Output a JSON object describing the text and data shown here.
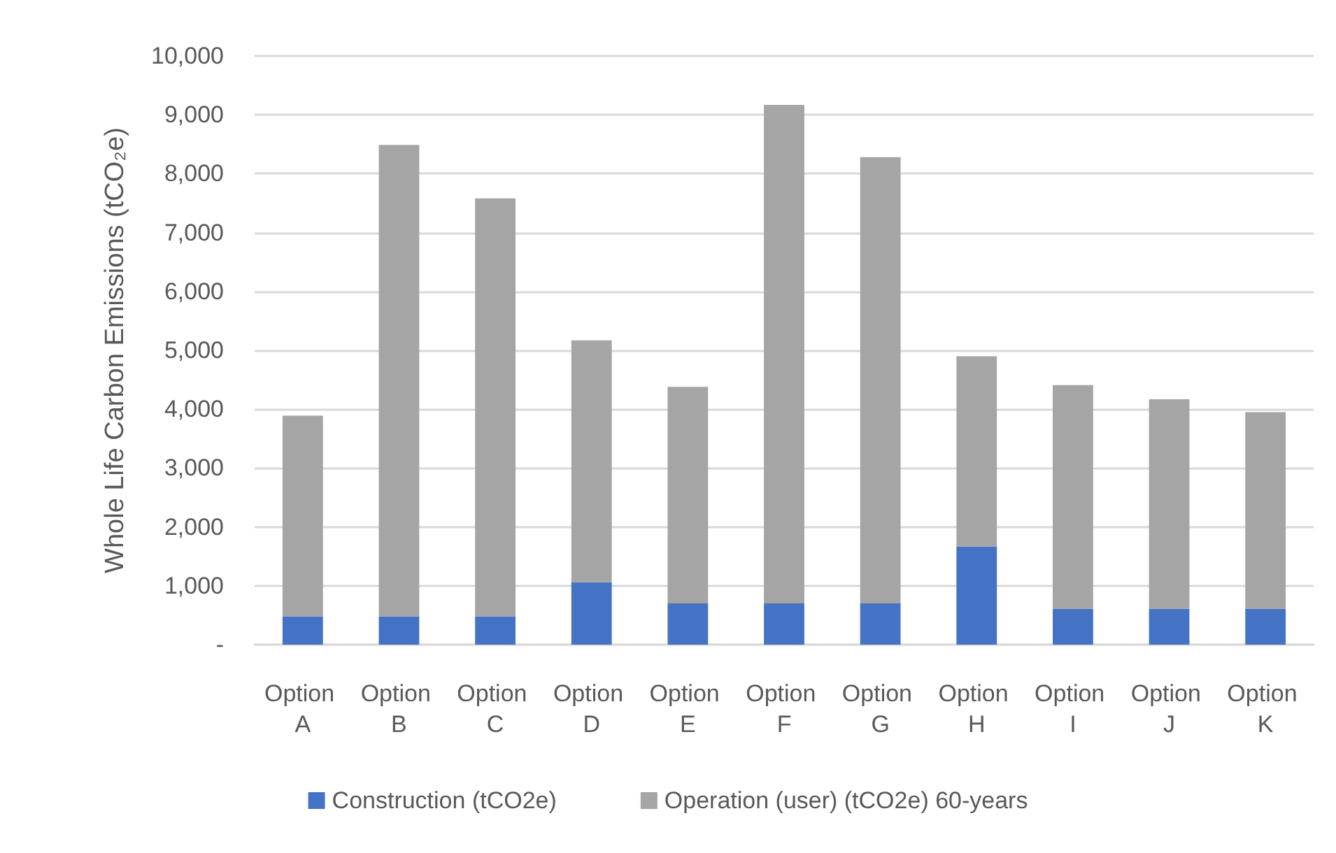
{
  "chart_data": {
    "type": "bar",
    "stacked": true,
    "ylabel": "Whole Life Carbon Emissions (tCO₂e)",
    "categories": [
      "Option A",
      "Option B",
      "Option C",
      "Option D",
      "Option E",
      "Option F",
      "Option G",
      "Option H",
      "Option I",
      "Option J",
      "Option K"
    ],
    "series": [
      {
        "name": "Construction (tCO2e)",
        "color": "#4472c4",
        "values": [
          480,
          480,
          480,
          1060,
          700,
          700,
          700,
          1670,
          610,
          610,
          610
        ]
      },
      {
        "name": "Operation (user) (tCO2e) 60-years",
        "color": "#a5a5a5",
        "values": [
          3410,
          8010,
          7100,
          4110,
          3680,
          8470,
          7580,
          3230,
          3800,
          3560,
          3340
        ]
      }
    ],
    "ylim": [
      0,
      10000
    ],
    "yticks": [
      {
        "value": 0,
        "label": "-"
      },
      {
        "value": 1000,
        "label": "1,000"
      },
      {
        "value": 2000,
        "label": "2,000"
      },
      {
        "value": 3000,
        "label": "3,000"
      },
      {
        "value": 4000,
        "label": "4,000"
      },
      {
        "value": 5000,
        "label": "5,000"
      },
      {
        "value": 6000,
        "label": "6,000"
      },
      {
        "value": 7000,
        "label": "7,000"
      },
      {
        "value": 8000,
        "label": "8,000"
      },
      {
        "value": 9000,
        "label": "9,000"
      },
      {
        "value": 10000,
        "label": "10,000"
      }
    ],
    "grid": "y",
    "legend": "bottom"
  }
}
